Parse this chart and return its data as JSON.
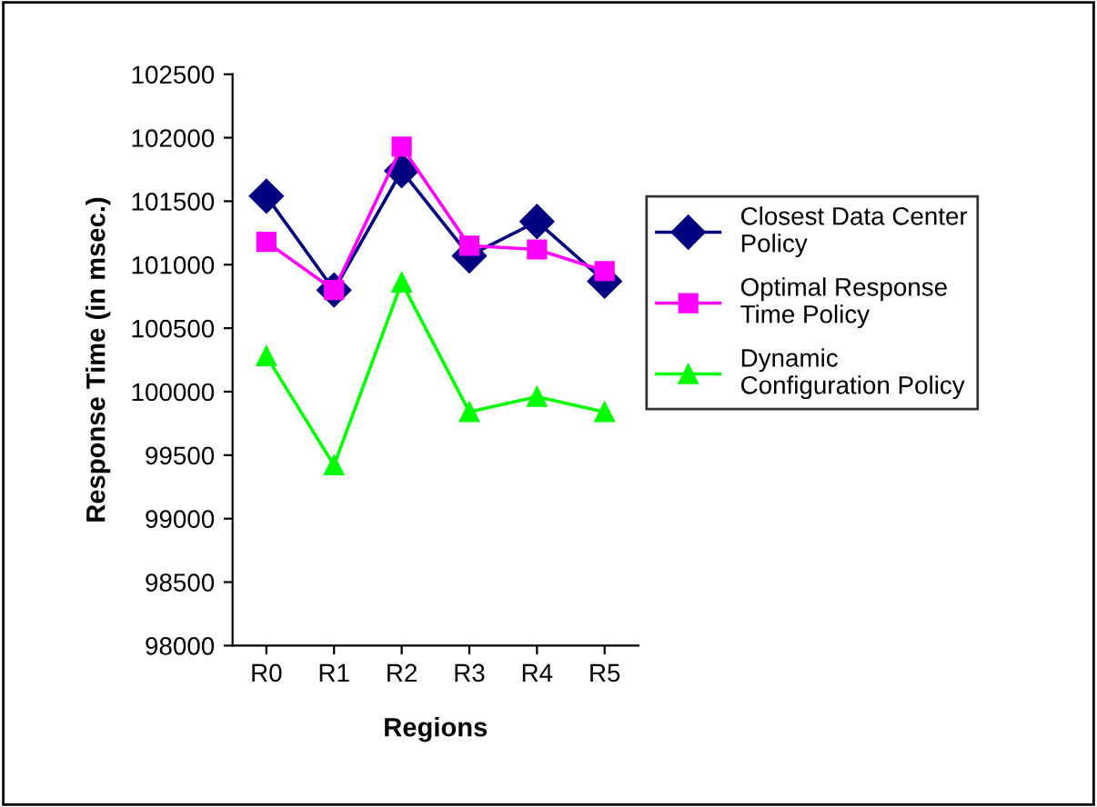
{
  "chart_data": {
    "type": "line",
    "xlabel": "Regions",
    "ylabel": "Response Time (in msec.)",
    "categories": [
      "R0",
      "R1",
      "R2",
      "R3",
      "R4",
      "R5"
    ],
    "series": [
      {
        "name": "Closest Data Center Policy",
        "color": "#000080",
        "marker": "diamond",
        "values": [
          101540,
          100800,
          101740,
          101070,
          101340,
          100870
        ]
      },
      {
        "name": "Optimal Response Time Policy",
        "color": "#ff00ff",
        "marker": "square",
        "values": [
          101180,
          100800,
          101930,
          101150,
          101120,
          100950
        ]
      },
      {
        "name": "Dynamic Configuration Policy",
        "color": "#00ff00",
        "marker": "triangle",
        "values": [
          100280,
          99420,
          100860,
          99840,
          99960,
          99840
        ]
      }
    ],
    "ylim": [
      98000,
      102500
    ],
    "yticks": [
      98000,
      98500,
      99000,
      99500,
      100000,
      100500,
      101000,
      101500,
      102000,
      102500
    ],
    "grid": false,
    "legend": "right",
    "line_style": "solid"
  }
}
